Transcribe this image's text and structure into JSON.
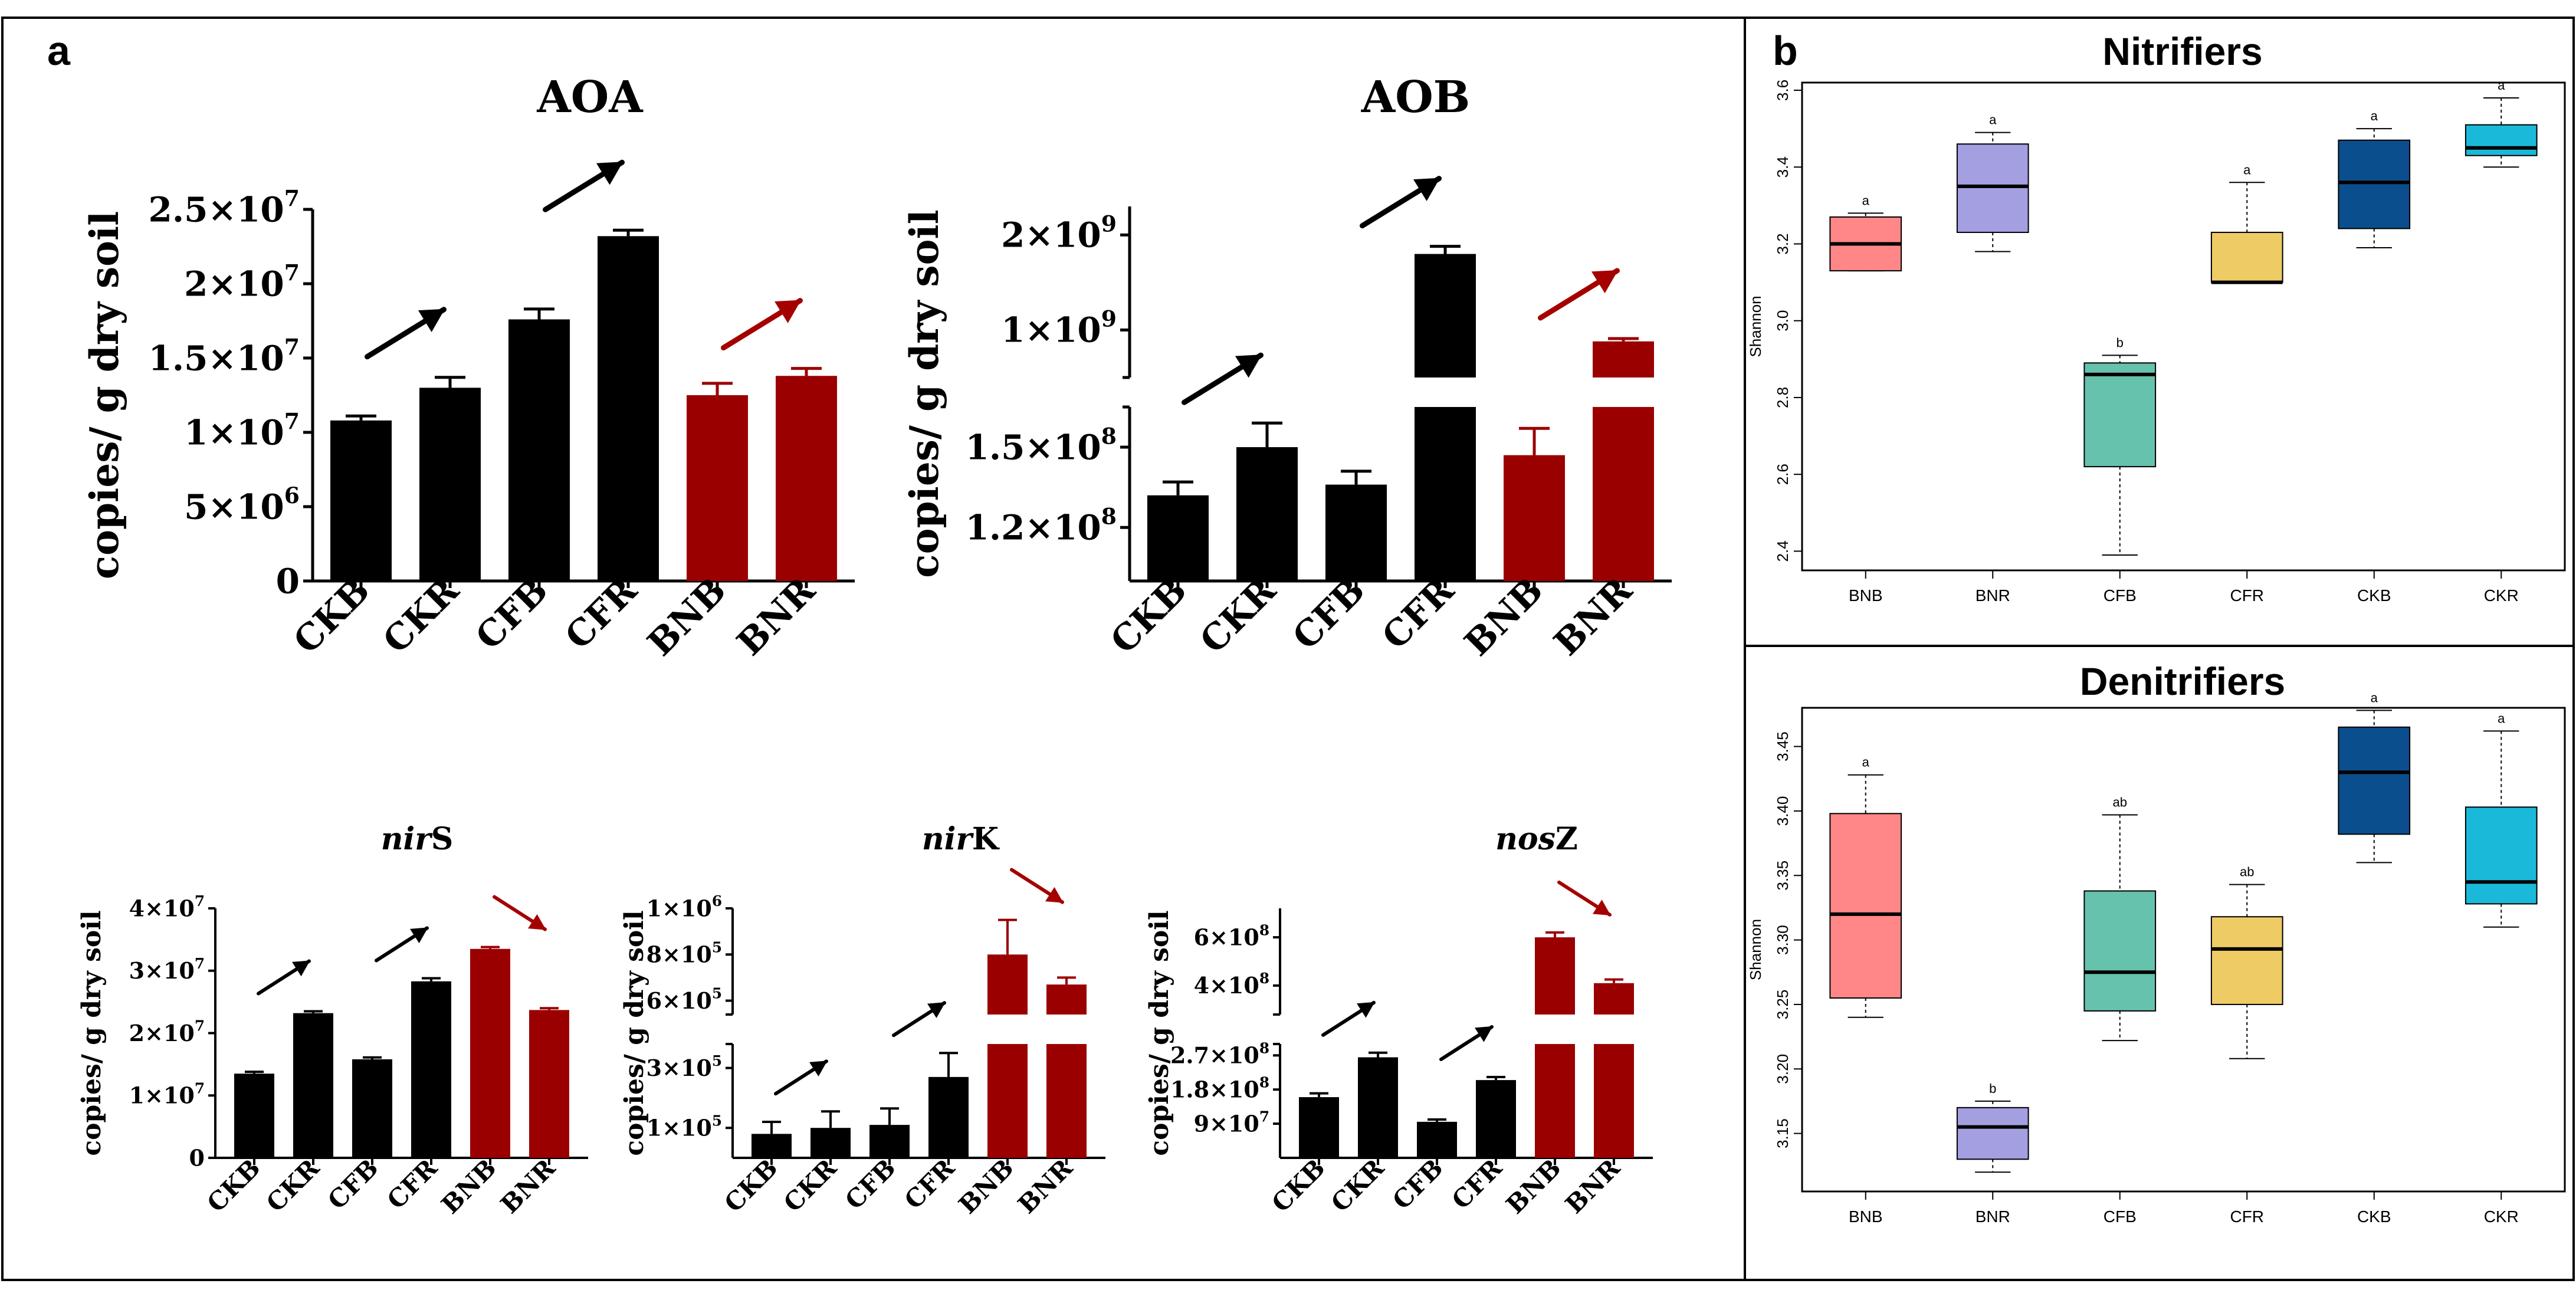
{
  "panel_a_label": "a",
  "panel_b_label": "b",
  "colors": {
    "black_bar": "#000000",
    "red_bar": "#9B0000",
    "red_arrow": "#A50000",
    "BNB": "#FF8787",
    "BNR": "#A49FE0",
    "CFB": "#66C2AC",
    "CFR": "#EFCB66",
    "CKB": "#0B4E8E",
    "CKR": "#1AB9D9"
  },
  "chart_data": [
    {
      "id": "aoa",
      "type": "bar",
      "title": "AOA",
      "ylabel": "copies/ g dry soil",
      "categories": [
        "CKB",
        "CKR",
        "CFB",
        "CFR",
        "BNB",
        "BNR"
      ],
      "values": [
        10800000,
        13000000,
        17600000,
        23200000,
        12500000,
        13800000
      ],
      "errors": [
        300000,
        700000,
        700000,
        400000,
        800000,
        500000
      ],
      "ylim": [
        0,
        25000000
      ],
      "yticks": [
        {
          "value": 0,
          "mant": "0",
          "exp": ""
        },
        {
          "value": 5000000,
          "mant": "5×10",
          "exp": "6"
        },
        {
          "value": 10000000,
          "mant": "1×10",
          "exp": "7"
        },
        {
          "value": 15000000,
          "mant": "1.5×10",
          "exp": "7"
        },
        {
          "value": 20000000,
          "mant": "2×10",
          "exp": "7"
        },
        {
          "value": 25000000,
          "mant": "2.5×10",
          "exp": "7"
        }
      ],
      "bar_colors": [
        "black",
        "black",
        "black",
        "black",
        "red",
        "red"
      ],
      "arrows": [
        {
          "between": [
            0,
            1
          ],
          "color": "black"
        },
        {
          "between": [
            2,
            3
          ],
          "color": "black"
        },
        {
          "between": [
            4,
            5
          ],
          "color": "red"
        }
      ]
    },
    {
      "id": "aob",
      "type": "bar",
      "title": "AOB",
      "ylabel": "copies/ g dry soil",
      "broken_axis": true,
      "categories": [
        "CKB",
        "CKR",
        "CFB",
        "CFR",
        "BNB",
        "BNR"
      ],
      "values": [
        132000000,
        150000000,
        136000000,
        1800000000,
        147000000,
        880000000
      ],
      "errors": [
        5000000,
        9000000,
        5000000,
        80000000,
        10000000,
        30000000
      ],
      "lower_range": [
        100000000,
        165000000
      ],
      "upper_range": [
        500000000,
        2300000000
      ],
      "yticks": [
        {
          "value": 120000000,
          "mant": "1.2×10",
          "exp": "8"
        },
        {
          "value": 150000000,
          "mant": "1.5×10",
          "exp": "8"
        },
        {
          "value": 1000000000,
          "mant": "1×10",
          "exp": "9"
        },
        {
          "value": 2000000000,
          "mant": "2×10",
          "exp": "9"
        }
      ],
      "bar_colors": [
        "black",
        "black",
        "black",
        "black",
        "red",
        "red"
      ],
      "arrows": [
        {
          "between": [
            0,
            1
          ],
          "color": "black"
        },
        {
          "between": [
            2,
            3
          ],
          "color": "black"
        },
        {
          "between": [
            4,
            5
          ],
          "color": "red"
        }
      ]
    },
    {
      "id": "nirs",
      "type": "bar",
      "title_italic": "nir",
      "title_plain": "S",
      "ylabel": "copies/ g dry soil",
      "categories": [
        "CKB",
        "CKR",
        "CFB",
        "CFR",
        "BNB",
        "BNR"
      ],
      "values": [
        13500000,
        23200000,
        15800000,
        28300000,
        33500000,
        23700000
      ],
      "errors": [
        300000,
        300000,
        300000,
        500000,
        300000,
        300000
      ],
      "ylim": [
        0,
        40000000
      ],
      "yticks": [
        {
          "value": 0,
          "mant": "0",
          "exp": ""
        },
        {
          "value": 10000000,
          "mant": "1×10",
          "exp": "7"
        },
        {
          "value": 20000000,
          "mant": "2×10",
          "exp": "7"
        },
        {
          "value": 30000000,
          "mant": "3×10",
          "exp": "7"
        },
        {
          "value": 40000000,
          "mant": "4×10",
          "exp": "7"
        }
      ],
      "bar_colors": [
        "black",
        "black",
        "black",
        "black",
        "red",
        "red"
      ],
      "arrows": [
        {
          "between": [
            0,
            1
          ],
          "color": "black"
        },
        {
          "between": [
            2,
            3
          ],
          "color": "black"
        },
        {
          "between": [
            4,
            5
          ],
          "color": "red",
          "direction": "down"
        }
      ]
    },
    {
      "id": "nirk",
      "type": "bar",
      "title_italic": "nir",
      "title_plain": "K",
      "ylabel": "copies/ g dry soil",
      "broken_axis": true,
      "categories": [
        "CKB",
        "CKR",
        "CFB",
        "CFR",
        "BNB",
        "BNR"
      ],
      "values": [
        80000,
        100000,
        110000,
        270000,
        800000,
        670000
      ],
      "errors": [
        40000,
        55000,
        55000,
        80000,
        150000,
        30000
      ],
      "lower_range": [
        0,
        380000
      ],
      "upper_range": [
        540000,
        1000000
      ],
      "yticks": [
        {
          "value": 100000,
          "mant": "1×10",
          "exp": "5"
        },
        {
          "value": 300000,
          "mant": "3×10",
          "exp": "5"
        },
        {
          "value": 600000,
          "mant": "6×10",
          "exp": "5"
        },
        {
          "value": 800000,
          "mant": "8×10",
          "exp": "5"
        },
        {
          "value": 1000000,
          "mant": "1×10",
          "exp": "6"
        }
      ],
      "bar_colors": [
        "black",
        "black",
        "black",
        "black",
        "red",
        "red"
      ],
      "arrows": [
        {
          "between": [
            0,
            1
          ],
          "color": "black"
        },
        {
          "between": [
            2,
            3
          ],
          "color": "black"
        },
        {
          "between": [
            4,
            5
          ],
          "color": "red",
          "direction": "down"
        }
      ]
    },
    {
      "id": "nosz",
      "type": "bar",
      "title_italic": "nos",
      "title_plain": "Z",
      "ylabel": "copies/ g dry soil",
      "broken_axis": true,
      "categories": [
        "CKB",
        "CKR",
        "CFB",
        "CFR",
        "BNB",
        "BNR"
      ],
      "values": [
        160000000,
        265000000,
        95000000,
        205000000,
        600000000,
        410000000
      ],
      "errors": [
        10000000,
        12000000,
        6000000,
        8000000,
        20000000,
        15000000
      ],
      "lower_range": [
        0,
        300000000
      ],
      "upper_range": [
        280000000,
        720000000
      ],
      "yticks": [
        {
          "value": 90000000,
          "mant": "9×10",
          "exp": "7"
        },
        {
          "value": 180000000,
          "mant": "1.8×10",
          "exp": "8"
        },
        {
          "value": 270000000,
          "mant": "2.7×10",
          "exp": "8"
        },
        {
          "value": 400000000,
          "mant": "4×10",
          "exp": "8"
        },
        {
          "value": 600000000,
          "mant": "6×10",
          "exp": "8"
        }
      ],
      "bar_colors": [
        "black",
        "black",
        "black",
        "black",
        "red",
        "red"
      ],
      "arrows": [
        {
          "between": [
            0,
            1
          ],
          "color": "black"
        },
        {
          "between": [
            2,
            3
          ],
          "color": "black"
        },
        {
          "between": [
            4,
            5
          ],
          "color": "red",
          "direction": "down"
        }
      ]
    },
    {
      "id": "nitrifiers",
      "type": "box",
      "title": "Nitrifiers",
      "ylabel": "Shannon",
      "categories": [
        "BNB",
        "BNR",
        "CFB",
        "CFR",
        "CKB",
        "CKR"
      ],
      "ylim": [
        2.35,
        3.62
      ],
      "yticks": [
        2.4,
        2.6,
        2.8,
        3.0,
        3.2,
        3.4,
        3.6
      ],
      "ytick_labels": [
        "2.4",
        "2.6",
        "2.8",
        "3.0",
        "3.2",
        "3.4",
        "3.6"
      ],
      "boxes": [
        {
          "min": 3.13,
          "q1": 3.13,
          "median": 3.2,
          "q3": 3.27,
          "max": 3.28
        },
        {
          "min": 3.18,
          "q1": 3.23,
          "median": 3.35,
          "q3": 3.46,
          "max": 3.49
        },
        {
          "min": 2.39,
          "q1": 2.62,
          "median": 2.86,
          "q3": 2.89,
          "max": 2.91
        },
        {
          "min": 3.1,
          "q1": 3.1,
          "median": 3.1,
          "q3": 3.23,
          "max": 3.36
        },
        {
          "min": 3.19,
          "q1": 3.24,
          "median": 3.36,
          "q3": 3.47,
          "max": 3.5
        },
        {
          "min": 3.4,
          "q1": 3.43,
          "median": 3.45,
          "q3": 3.51,
          "max": 3.58
        }
      ],
      "letters": [
        "a",
        "a",
        "b",
        "a",
        "a",
        "a"
      ]
    },
    {
      "id": "denitrifiers",
      "type": "box",
      "title": "Denitrifiers",
      "ylabel": "Shannon",
      "categories": [
        "BNB",
        "BNR",
        "CFB",
        "CFR",
        "CKB",
        "CKR"
      ],
      "ylim": [
        3.105,
        3.48
      ],
      "yticks": [
        3.15,
        3.2,
        3.25,
        3.3,
        3.35,
        3.4,
        3.45
      ],
      "ytick_labels": [
        "3.15",
        "3.20",
        "3.25",
        "3.30",
        "3.35",
        "3.40",
        "3.45"
      ],
      "boxes": [
        {
          "min": 3.24,
          "q1": 3.255,
          "median": 3.32,
          "q3": 3.398,
          "max": 3.428
        },
        {
          "min": 3.12,
          "q1": 3.13,
          "median": 3.155,
          "q3": 3.17,
          "max": 3.175
        },
        {
          "min": 3.222,
          "q1": 3.245,
          "median": 3.275,
          "q3": 3.338,
          "max": 3.397
        },
        {
          "min": 3.208,
          "q1": 3.25,
          "median": 3.293,
          "q3": 3.318,
          "max": 3.343
        },
        {
          "min": 3.36,
          "q1": 3.382,
          "median": 3.43,
          "q3": 3.465,
          "max": 3.478
        },
        {
          "min": 3.31,
          "q1": 3.328,
          "median": 3.345,
          "q3": 3.403,
          "max": 3.462
        }
      ],
      "letters": [
        "a",
        "b",
        "ab",
        "ab",
        "a",
        "a"
      ]
    }
  ]
}
